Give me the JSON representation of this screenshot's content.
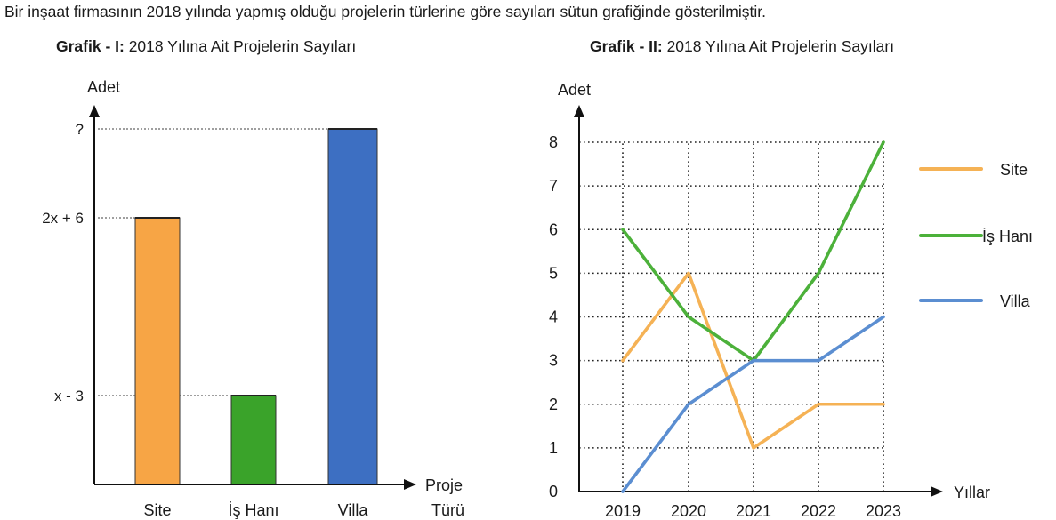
{
  "intro": "Bir inşaat firmasının 2018 yılında yapmış olduğu projelerin türlerine göre sayıları sütun grafiğinde gösterilmiştir.",
  "chart_data": [
    {
      "type": "bar",
      "title_bold": "Grafik - I:",
      "title": "2018 Yılına Ait Projelerin Sayıları",
      "ylabel": "Adet",
      "xlabel": [
        "Proje",
        "Türü"
      ],
      "categories": [
        "Site",
        "İş Hanı",
        "Villa"
      ],
      "value_labels": [
        "2x + 6",
        "x - 3",
        "?"
      ],
      "relative_heights": [
        3,
        1,
        4
      ],
      "colors": [
        "#f7a545",
        "#3aa32a",
        "#3d6fc2"
      ]
    },
    {
      "type": "line",
      "title_bold": "Grafik - II:",
      "title": "2018 Yılına Ait Projelerin Sayıları",
      "ylabel": "Adet",
      "xlabel": "Yıllar",
      "x": [
        "2019",
        "2020",
        "2021",
        "2022",
        "2023"
      ],
      "yticks": [
        "0",
        "1",
        "2",
        "3",
        "4",
        "5",
        "6",
        "7",
        "8"
      ],
      "ylim": [
        0,
        8
      ],
      "grid": true,
      "legend_position": "right",
      "series": [
        {
          "name": "Site",
          "values": [
            3,
            5,
            1,
            2,
            2
          ],
          "color": "#f5b255"
        },
        {
          "name": "İş Hanı",
          "values": [
            6,
            4,
            3,
            5,
            8
          ],
          "color": "#4cb13a"
        },
        {
          "name": "Villa",
          "values": [
            0,
            2,
            3,
            3,
            4
          ],
          "color": "#5b8ed1"
        }
      ]
    }
  ]
}
